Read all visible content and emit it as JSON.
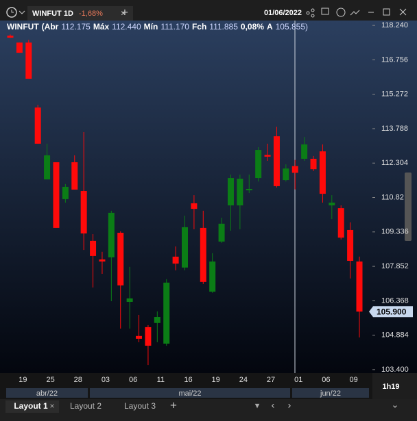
{
  "toolbar": {
    "tab": "WINFUT 1D",
    "change": "-1,68%",
    "date": "01/06/2022"
  },
  "chart_data": {
    "type": "candlestick",
    "title": "WINFUT",
    "info": [
      {
        "label": "(Abr",
        "value": "112.175"
      },
      {
        "label": "Máx",
        "value": "112.440"
      },
      {
        "label": "Mín",
        "value": "111.170"
      },
      {
        "label": "Fch",
        "value": "111.885"
      },
      {
        "label": "0,08%",
        "value": ""
      },
      {
        "label": "A",
        "value": "105.855)"
      }
    ],
    "categories": [
      null,
      "19",
      null,
      null,
      "25",
      null,
      null,
      "28",
      null,
      null,
      "03",
      null,
      null,
      "06",
      null,
      null,
      "11",
      null,
      null,
      "16",
      null,
      null,
      "19",
      null,
      null,
      "24",
      null,
      null,
      "27",
      null,
      null,
      "01",
      null,
      null,
      "06",
      null,
      null,
      "09",
      null
    ],
    "open": [
      117.8,
      117.5,
      117.5,
      114.7,
      111.6,
      112.34,
      110.75,
      112.34,
      111.1,
      108.95,
      108.15,
      108.24,
      109.3,
      106.32,
      104.85,
      105.23,
      105.41,
      104.52,
      108.27,
      107.8,
      110.57,
      109.51,
      106.76,
      108.92,
      110.48,
      110.48,
      111.13,
      111.66,
      112.66,
      113.46,
      111.57,
      112.175,
      112.49,
      112.49,
      112.81,
      110.48,
      110.36,
      109.42,
      108.06
    ],
    "high": [
      117.85,
      117.5,
      117.62,
      114.82,
      113.14,
      112.34,
      111.4,
      112.64,
      113.64,
      109.24,
      108.48,
      110.25,
      109.36,
      107.83,
      105.76,
      105.32,
      105.91,
      107.3,
      108.71,
      110.04,
      110.92,
      110.25,
      108.42,
      109.95,
      111.81,
      111.81,
      111.81,
      112.99,
      113.14,
      113.87,
      112.25,
      112.44,
      113.43,
      112.61,
      113.11,
      110.92,
      110.48,
      109.75,
      108.27
    ],
    "low": [
      117.7,
      117.06,
      115.94,
      113.14,
      111.6,
      109.51,
      110.6,
      111.16,
      108.56,
      106.94,
      107.53,
      106.35,
      105.17,
      105.17,
      104.58,
      103.6,
      104.58,
      104.43,
      107.68,
      107.68,
      109.45,
      107.09,
      106.71,
      108.86,
      109.39,
      109.45,
      111.01,
      111.51,
      112.4,
      111.25,
      111.51,
      111.17,
      112.4,
      111.96,
      110.6,
      109.89,
      109.01,
      107.33,
      104.79
    ],
    "close": [
      117.71,
      117.06,
      115.94,
      113.14,
      112.64,
      109.51,
      111.28,
      111.16,
      109.27,
      108.3,
      108.06,
      110.16,
      107.03,
      106.47,
      104.73,
      104.43,
      105.67,
      107.15,
      107.97,
      109.54,
      110.33,
      107.18,
      108.06,
      109.69,
      111.66,
      111.63,
      111.19,
      112.87,
      112.58,
      111.31,
      112.07,
      111.885,
      113.11,
      112.04,
      110.98,
      110.6,
      109.09,
      108.09,
      105.9
    ],
    "up_color": "#0b7d16",
    "down_color": "#ff0a0a",
    "ylim": [
      103.25,
      118.45
    ],
    "yticks": [
      {
        "value": 118.24,
        "label": "118.240"
      },
      116.756,
      115.272,
      113.788,
      112.304,
      110.82,
      109.336,
      107.852,
      106.368,
      104.884,
      {
        "value": 103.4,
        "label": "103.400"
      }
    ],
    "last_price": {
      "value": 105.9,
      "label": "105.900"
    },
    "months": [
      "abr/22",
      "mai/22",
      "jun/22"
    ],
    "interval": "1h19"
  },
  "tabs": [
    "Layout 1",
    "Layout 2",
    "Layout 3"
  ]
}
